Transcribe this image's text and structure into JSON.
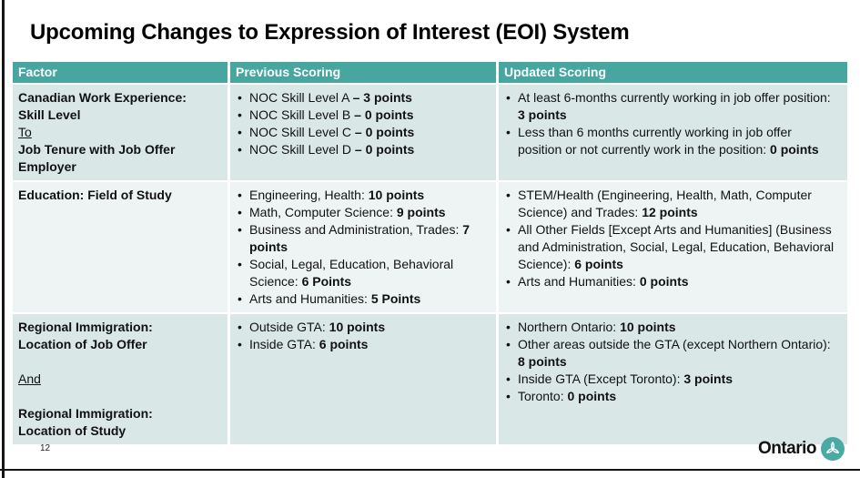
{
  "slide": {
    "title": "Upcoming Changes to Expression of Interest (EOI) System",
    "page_number": "12"
  },
  "footer": {
    "logo_text": "Ontario",
    "logo_icon": "trillium-icon"
  },
  "colors": {
    "header_bg": "#48A6A0",
    "row_teal": "#D9E8E7",
    "row_light": "#EEF3F4",
    "logo_teal": "#4BA9A4",
    "frame_black": "#151515"
  },
  "table": {
    "headers": [
      "Factor",
      "Previous Scoring",
      "Updated Scoring"
    ],
    "rows": [
      {
        "factor_lines": [
          {
            "text": "Canadian Work Experience:",
            "bold": true
          },
          {
            "text": "Skill Level",
            "bold": true
          },
          {
            "text": "To",
            "underline": true
          },
          {
            "text": "Job Tenure with Job Offer",
            "bold": true
          },
          {
            "text": "Employer",
            "bold": true
          }
        ],
        "previous": [
          {
            "text": "NOC Skill Level A ",
            "bold": "– 3 points"
          },
          {
            "text": "NOC Skill Level B ",
            "bold": "– 0 points"
          },
          {
            "text": "NOC Skill Level C ",
            "bold": "– 0 points"
          },
          {
            "text": "NOC Skill Level D ",
            "bold": "– 0 points"
          }
        ],
        "updated": [
          {
            "text": "At least 6-months currently working in job offer position: ",
            "bold": "3 points"
          },
          {
            "text": "Less than 6 months currently working in job offer position or not currently work in the position: ",
            "bold": "0 points"
          }
        ]
      },
      {
        "factor_lines": [
          {
            "text": "Education: Field of Study",
            "bold": true
          }
        ],
        "previous": [
          {
            "text": "Engineering, Health: ",
            "bold": "10 points"
          },
          {
            "text": "Math, Computer Science: ",
            "bold": "9 points"
          },
          {
            "text": "Business and Administration, Trades: ",
            "bold": "7 points"
          },
          {
            "text": "Social, Legal, Education, Behavioral Science: ",
            "bold": "6 Points"
          },
          {
            "text": "Arts and Humanities: ",
            "bold": "5 Points"
          }
        ],
        "updated": [
          {
            "text": "STEM/Health (Engineering, Health, Math, Computer Science) and Trades: ",
            "bold": "12 points"
          },
          {
            "text": "All Other Fields [Except Arts and Humanities] (Business and Administration, Social, Legal, Education, Behavioral Science): ",
            "bold": "6 points"
          },
          {
            "text": "Arts and Humanities: ",
            "bold": "0 points"
          }
        ]
      },
      {
        "factor_lines": [
          {
            "text": "Regional Immigration:",
            "bold": true
          },
          {
            "text": "Location of Job Offer",
            "bold": true
          },
          {
            "text": "",
            "spacer": true
          },
          {
            "text": "And",
            "underline": true
          },
          {
            "text": "",
            "spacer": true
          },
          {
            "text": "Regional Immigration:",
            "bold": true
          },
          {
            "text": "Location of Study",
            "bold": true
          }
        ],
        "previous": [
          {
            "text": "Outside GTA: ",
            "bold": "10 points"
          },
          {
            "text": "Inside GTA: ",
            "bold": "6 points"
          }
        ],
        "updated": [
          {
            "text": "Northern Ontario: ",
            "bold": "10 points"
          },
          {
            "text": "Other areas outside the GTA (except Northern Ontario): ",
            "bold": "8 points"
          },
          {
            "text": "Inside GTA (Except Toronto): ",
            "bold": "3 points"
          },
          {
            "text": "Toronto: ",
            "bold": "0 points"
          }
        ]
      }
    ]
  }
}
